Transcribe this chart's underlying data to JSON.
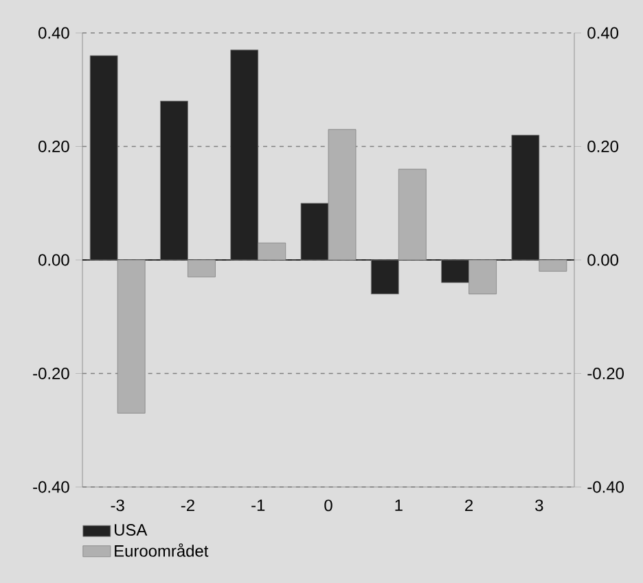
{
  "chart_data": {
    "type": "bar",
    "categories": [
      "-3",
      "-2",
      "-1",
      "0",
      "1",
      "2",
      "3"
    ],
    "series": [
      {
        "name": "USA",
        "color": "#222222",
        "values": [
          0.36,
          0.28,
          0.37,
          0.1,
          -0.06,
          -0.04,
          0.22
        ]
      },
      {
        "name": "Euroområdet",
        "color": "#b0b0b0",
        "values": [
          -0.27,
          -0.03,
          0.03,
          0.23,
          0.16,
          -0.06,
          -0.02
        ]
      }
    ],
    "ylim": [
      -0.4,
      0.4
    ],
    "yticks": [
      {
        "value": -0.4,
        "label": "-0.40"
      },
      {
        "value": -0.2,
        "label": "-0.20"
      },
      {
        "value": 0,
        "label": "0.00"
      },
      {
        "value": 0.2,
        "label": "0.20"
      },
      {
        "value": 0.4,
        "label": "0.40"
      }
    ],
    "y2lim": [
      -0.4,
      0.4
    ],
    "y2ticks": [
      {
        "value": -0.4,
        "label": "-0.40"
      },
      {
        "value": -0.2,
        "label": "-0.20"
      },
      {
        "value": 0,
        "label": "0.00"
      },
      {
        "value": 0.2,
        "label": "0.20"
      },
      {
        "value": 0.4,
        "label": "0.40"
      }
    ],
    "grid": "y",
    "legend": "bottom left"
  }
}
